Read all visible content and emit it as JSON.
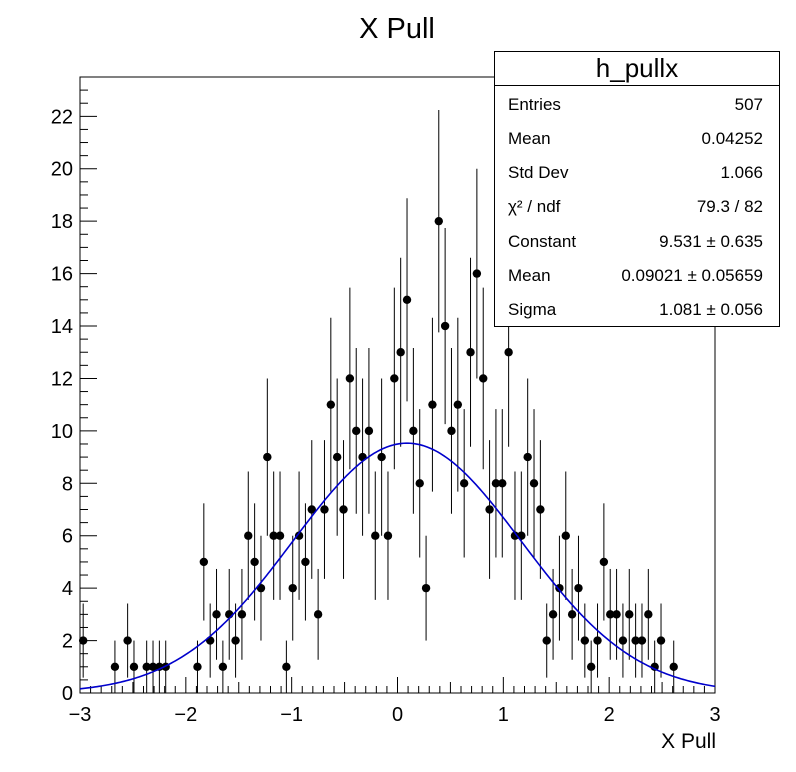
{
  "chart_data": {
    "type": "scatter",
    "title": "X Pull",
    "xlabel": "X Pull",
    "ylabel": "",
    "xlim": [
      -3,
      3
    ],
    "ylim": [
      0,
      23.5
    ],
    "x_ticks": [
      "−3",
      "−2",
      "−1",
      "0",
      "1",
      "2",
      "3"
    ],
    "y_ticks": [
      "0",
      "2",
      "4",
      "6",
      "8",
      "10",
      "12",
      "14",
      "16",
      "18",
      "20",
      "22"
    ],
    "grid": false,
    "series": [
      {
        "kind": "points_with_errors",
        "color": "#000000",
        "x": [
          -2.97,
          -2.67,
          -2.55,
          -2.49,
          -2.37,
          -2.31,
          -2.25,
          -2.19,
          -1.89,
          -1.83,
          -1.77,
          -1.71,
          -1.65,
          -1.59,
          -1.53,
          -1.47,
          -1.41,
          -1.35,
          -1.29,
          -1.23,
          -1.17,
          -1.11,
          -1.05,
          -0.99,
          -0.93,
          -0.87,
          -0.81,
          -0.75,
          -0.69,
          -0.63,
          -0.57,
          -0.51,
          -0.45,
          -0.39,
          -0.33,
          -0.27,
          -0.21,
          -0.15,
          -0.09,
          -0.03,
          0.03,
          0.09,
          0.15,
          0.21,
          0.27,
          0.33,
          0.39,
          0.45,
          0.51,
          0.57,
          0.63,
          0.69,
          0.75,
          0.81,
          0.87,
          0.93,
          0.99,
          1.05,
          1.11,
          1.17,
          1.23,
          1.29,
          1.35,
          1.41,
          1.47,
          1.53,
          1.59,
          1.65,
          1.71,
          1.77,
          1.83,
          1.89,
          1.95,
          2.01,
          2.07,
          2.13,
          2.19,
          2.25,
          2.31,
          2.37,
          2.43,
          2.49,
          2.61
        ],
        "y": [
          2,
          1,
          2,
          1,
          1,
          1,
          1,
          1,
          1,
          5,
          2,
          3,
          1,
          3,
          2,
          3,
          6,
          5,
          4,
          9,
          6,
          6,
          1,
          4,
          6,
          5,
          7,
          3,
          7,
          11,
          9,
          7,
          12,
          10,
          9,
          10,
          6,
          9,
          6,
          12,
          13,
          15,
          10,
          8,
          4,
          11,
          18,
          14,
          10,
          11,
          8,
          13,
          16,
          12,
          7,
          8,
          8,
          13,
          6,
          6,
          9,
          8,
          7,
          2,
          3,
          4,
          6,
          3,
          4,
          2,
          1,
          2,
          5,
          3,
          3,
          2,
          3,
          2,
          2,
          3,
          1,
          2,
          1
        ]
      },
      {
        "kind": "fit",
        "name": "",
        "color": "#0000cc",
        "constant": 9.531,
        "mean": 0.09021,
        "sigma": 1.081
      }
    ]
  },
  "stats": {
    "title": "h_pullx",
    "rows": [
      {
        "key": "Entries",
        "value": "507"
      },
      {
        "key": "Mean",
        "value": "0.04252"
      },
      {
        "key": "Std Dev",
        "value": "1.066"
      },
      {
        "key": "χ² / ndf",
        "value": "79.3 / 82"
      },
      {
        "key": "Constant",
        "value": "9.531 ± 0.635"
      },
      {
        "key": "Mean",
        "value": "0.09021 ± 0.05659"
      },
      {
        "key": "Sigma",
        "value": "1.081 ± 0.056"
      }
    ]
  }
}
